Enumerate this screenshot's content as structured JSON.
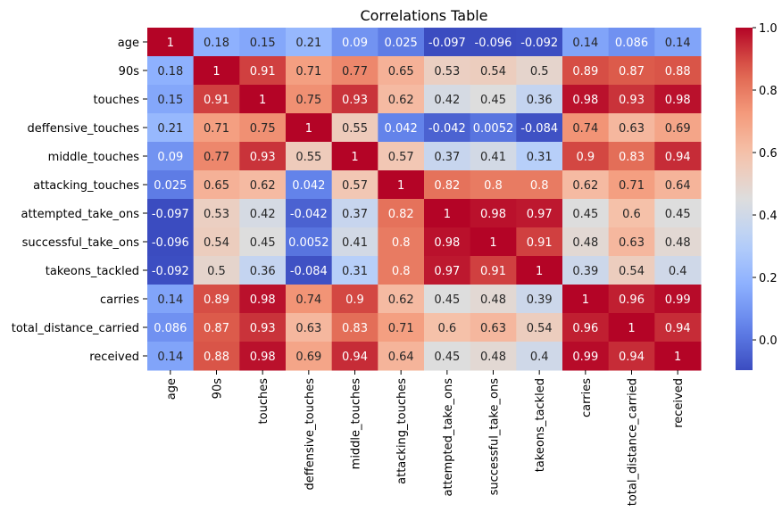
{
  "chart_data": {
    "type": "heatmap",
    "title": "Correlations Table",
    "xlabel": "",
    "ylabel": "",
    "colormap": "coolwarm",
    "vmin": -0.097,
    "vmax": 1.0,
    "annotated": true,
    "grid": false,
    "colorbar": {
      "placement": "right",
      "ticks": [
        0.0,
        0.2,
        0.4,
        0.6,
        0.8,
        1.0
      ],
      "tick_labels": [
        "0.0",
        "0.2",
        "0.4",
        "0.6",
        "0.8",
        "1.0"
      ]
    },
    "rows": [
      "age",
      "90s",
      "touches",
      "deffensive_touches",
      "middle_touches",
      "attacking_touches",
      "attempted_take_ons",
      "successful_take_ons",
      "takeons_tackled",
      "carries",
      "total_distance_carried",
      "received"
    ],
    "columns": [
      "age",
      "90s",
      "touches",
      "deffensive_touches",
      "middle_touches",
      "attacking_touches",
      "attempted_take_ons",
      "successful_take_ons",
      "takeons_tackled",
      "carries",
      "total_distance_carried",
      "received"
    ],
    "values": [
      [
        1,
        0.18,
        0.15,
        0.21,
        0.09,
        0.025,
        -0.097,
        -0.096,
        -0.092,
        0.14,
        0.086,
        0.14
      ],
      [
        0.18,
        1,
        0.91,
        0.71,
        0.77,
        0.65,
        0.53,
        0.54,
        0.5,
        0.89,
        0.87,
        0.88
      ],
      [
        0.15,
        0.91,
        1,
        0.75,
        0.93,
        0.62,
        0.42,
        0.45,
        0.36,
        0.98,
        0.93,
        0.98
      ],
      [
        0.21,
        0.71,
        0.75,
        1,
        0.55,
        0.042,
        -0.042,
        0.0052,
        -0.084,
        0.74,
        0.63,
        0.69
      ],
      [
        0.09,
        0.77,
        0.93,
        0.55,
        1,
        0.57,
        0.37,
        0.41,
        0.31,
        0.9,
        0.83,
        0.94
      ],
      [
        0.025,
        0.65,
        0.62,
        0.042,
        0.57,
        1,
        0.82,
        0.8,
        0.8,
        0.62,
        0.71,
        0.64
      ],
      [
        -0.097,
        0.53,
        0.42,
        -0.042,
        0.37,
        0.82,
        1,
        0.98,
        0.97,
        0.45,
        0.6,
        0.45
      ],
      [
        -0.096,
        0.54,
        0.45,
        0.0052,
        0.41,
        0.8,
        0.98,
        1,
        0.91,
        0.48,
        0.63,
        0.48
      ],
      [
        -0.092,
        0.5,
        0.36,
        -0.084,
        0.31,
        0.8,
        0.97,
        0.91,
        1,
        0.39,
        0.54,
        0.4
      ],
      [
        0.14,
        0.89,
        0.98,
        0.74,
        0.9,
        0.62,
        0.45,
        0.48,
        0.39,
        1,
        0.96,
        0.99
      ],
      [
        0.086,
        0.87,
        0.93,
        0.63,
        0.83,
        0.71,
        0.6,
        0.63,
        0.54,
        0.96,
        1,
        0.94
      ],
      [
        0.14,
        0.88,
        0.98,
        0.69,
        0.94,
        0.64,
        0.45,
        0.48,
        0.4,
        0.99,
        0.94,
        1
      ]
    ]
  }
}
